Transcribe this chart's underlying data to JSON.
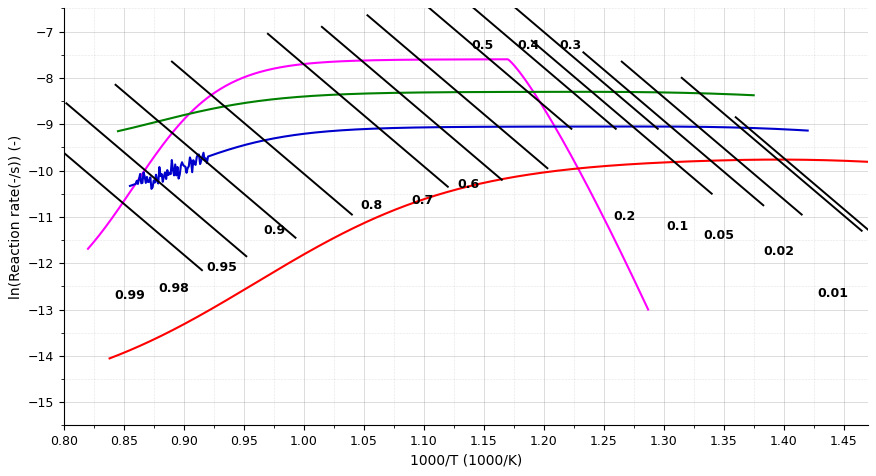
{
  "xlim": [
    0.8,
    1.47
  ],
  "ylim": [
    -15.5,
    -6.5
  ],
  "xlabel": "1000/T (1000/K)",
  "ylabel": "ln(Reaction rate(-/s)) (-)",
  "bg_color": "#ffffff",
  "grid_major_color": "#888888",
  "grid_minor_color": "#aaaaaa",
  "yticks": [
    -7,
    -8,
    -9,
    -10,
    -11,
    -12,
    -13,
    -14,
    -15
  ],
  "xticks": [
    0.8,
    0.85,
    0.9,
    0.95,
    1.0,
    1.05,
    1.1,
    1.15,
    1.2,
    1.25,
    1.3,
    1.35,
    1.4,
    1.45
  ],
  "curves": {
    "magenta": {
      "color": "#ff00ff",
      "lw": 1.5
    },
    "green": {
      "color": "#008000",
      "lw": 1.5
    },
    "blue": {
      "color": "#0000cd",
      "lw": 1.5
    },
    "red": {
      "color": "#ff0000",
      "lw": 1.5
    }
  },
  "iso_line_color": "#000000",
  "iso_line_lw": 1.4,
  "label_fontsize": 9,
  "label_fontweight": "bold"
}
